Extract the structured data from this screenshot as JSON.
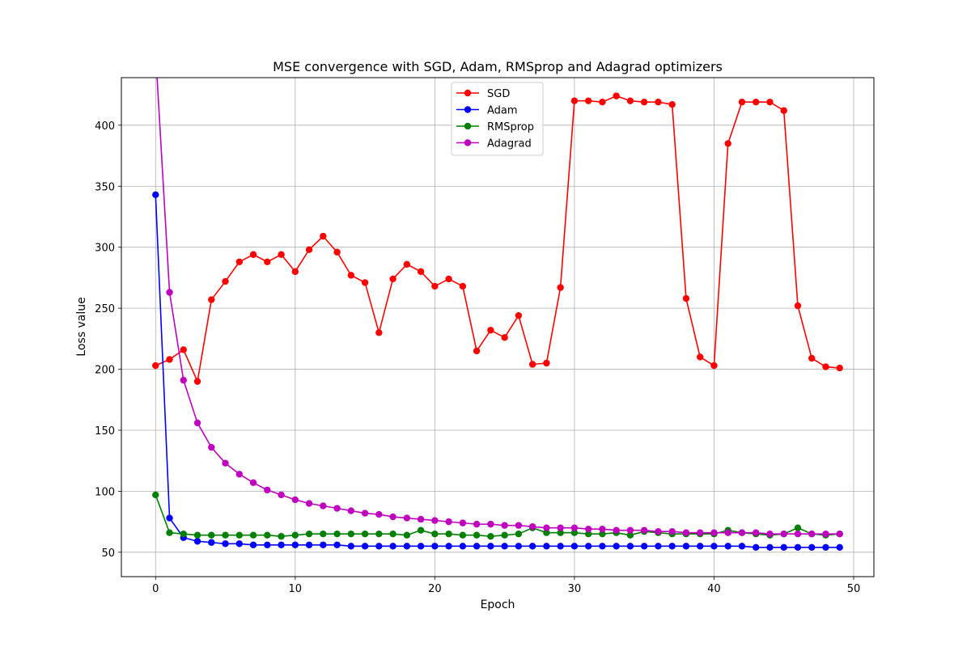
{
  "chart_data": {
    "type": "line",
    "title": "MSE convergence with SGD, Adam, RMSprop and Adagrad optimizers",
    "xlabel": "Epoch",
    "ylabel": "Loss value",
    "xlim": [
      -2.45,
      51.45
    ],
    "ylim": [
      30,
      439
    ],
    "xticks": [
      0,
      10,
      20,
      30,
      40,
      50
    ],
    "yticks": [
      50,
      100,
      150,
      200,
      250,
      300,
      350,
      400
    ],
    "grid": true,
    "legend_position": "top-center",
    "x": [
      0,
      1,
      2,
      3,
      4,
      5,
      6,
      7,
      8,
      9,
      10,
      11,
      12,
      13,
      14,
      15,
      16,
      17,
      18,
      19,
      20,
      21,
      22,
      23,
      24,
      25,
      26,
      27,
      28,
      29,
      30,
      31,
      32,
      33,
      34,
      35,
      36,
      37,
      38,
      39,
      40,
      41,
      42,
      43,
      44,
      45,
      46,
      47,
      48,
      49
    ],
    "series": [
      {
        "name": "SGD",
        "color": "#ff0000",
        "values": [
          203,
          208,
          216,
          190,
          257,
          272,
          288,
          294,
          288,
          294,
          280,
          298,
          309,
          296,
          277,
          271,
          230,
          274,
          286,
          280,
          268,
          274,
          268,
          215,
          232,
          226,
          244,
          204,
          205,
          267,
          420,
          420,
          419,
          424,
          420,
          419,
          419,
          417,
          258,
          210,
          203,
          385,
          419,
          419,
          419,
          412,
          252,
          209,
          202,
          201
        ]
      },
      {
        "name": "Adam",
        "color": "#0000ff",
        "values": [
          343,
          78,
          62,
          59,
          58,
          57,
          57,
          56,
          56,
          56,
          56,
          56,
          56,
          56,
          55,
          55,
          55,
          55,
          55,
          55,
          55,
          55,
          55,
          55,
          55,
          55,
          55,
          55,
          55,
          55,
          55,
          55,
          55,
          55,
          55,
          55,
          55,
          55,
          55,
          55,
          55,
          55,
          55,
          54,
          54,
          54,
          54,
          54,
          54,
          54
        ]
      },
      {
        "name": "RMSprop",
        "color": "#008000",
        "values": [
          97,
          66,
          65,
          64,
          64,
          64,
          64,
          64,
          64,
          63,
          64,
          65,
          65,
          65,
          65,
          65,
          65,
          65,
          64,
          68,
          65,
          65,
          64,
          64,
          63,
          64,
          65,
          70,
          66,
          66,
          66,
          65,
          65,
          66,
          64,
          67,
          66,
          65,
          65,
          65,
          65,
          68,
          66,
          65,
          64,
          65,
          70,
          65,
          64,
          65
        ]
      },
      {
        "name": "Adagrad",
        "color": "#bf00bf",
        "values": [
          460,
          263,
          191,
          156,
          136,
          123,
          114,
          107,
          101,
          97,
          93,
          90,
          88,
          86,
          84,
          82,
          81,
          79,
          78,
          77,
          76,
          75,
          74,
          73,
          73,
          72,
          72,
          71,
          70,
          70,
          70,
          69,
          69,
          68,
          68,
          68,
          67,
          67,
          66,
          66,
          66,
          66,
          66,
          66,
          65,
          65,
          65,
          65,
          65,
          65
        ]
      }
    ]
  }
}
